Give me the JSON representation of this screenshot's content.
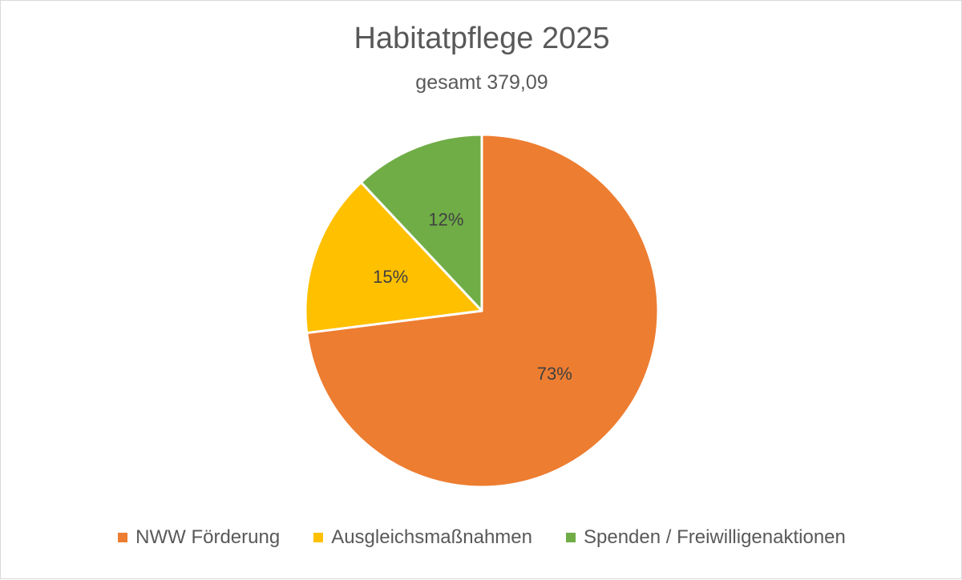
{
  "chart_data": {
    "type": "pie",
    "title": "Habitatpflege 2025",
    "subtitle": "gesamt 379,09",
    "categories": [
      "NWW Förderung",
      "Ausgleichsmaßnahmen",
      "Spenden / Freiwilligenaktionen"
    ],
    "values": [
      73,
      15,
      12
    ],
    "labels": [
      "73%",
      "15%",
      "12%"
    ],
    "colors": [
      "#ED7D31",
      "#FFC000",
      "#70AD47"
    ],
    "legend": "bottom",
    "start_angle": "12 o'clock",
    "direction": "clockwise"
  }
}
